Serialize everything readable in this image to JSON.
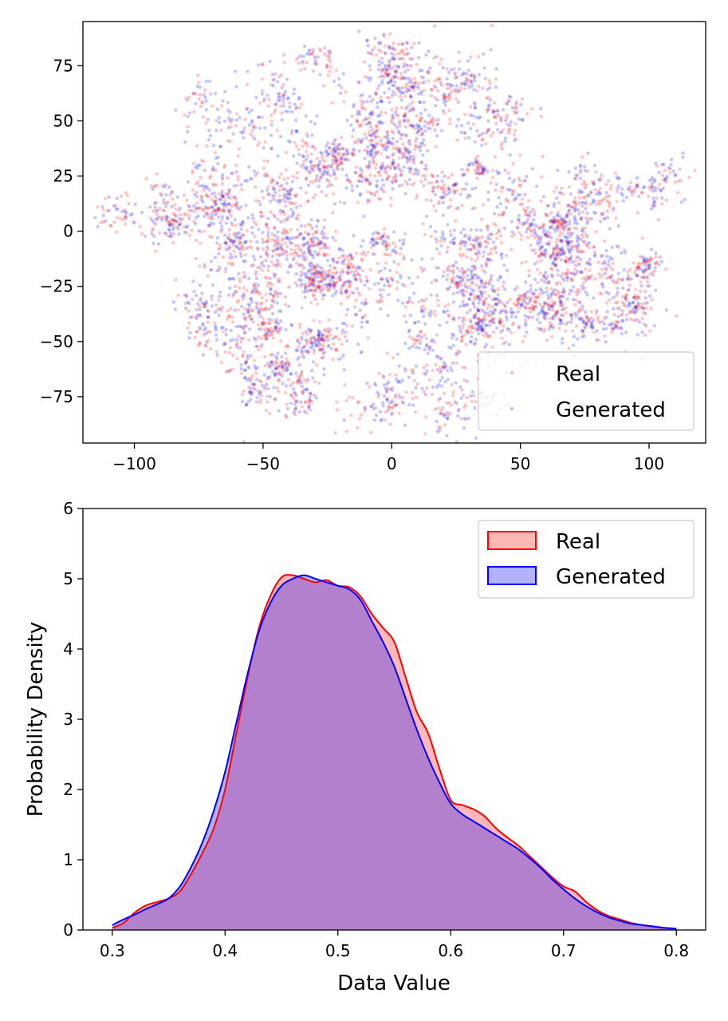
{
  "chart_data": [
    {
      "type": "scatter",
      "title": "",
      "xlabel": "",
      "ylabel": "",
      "xlim": [
        -120,
        122
      ],
      "ylim": [
        -96,
        95
      ],
      "xticks": [
        -100,
        -50,
        0,
        50,
        100
      ],
      "xtick_labels": [
        "−100",
        "−50",
        "0",
        "50",
        "100"
      ],
      "yticks": [
        -75,
        -50,
        -25,
        0,
        25,
        50,
        75
      ],
      "ytick_labels": [
        "−75",
        "−50",
        "−25",
        "0",
        "25",
        "50",
        "75"
      ],
      "legend_position": "lower-right",
      "series": [
        {
          "name": "Real",
          "color": "#ff0000",
          "alpha": 0.2,
          "point_count": 2600
        },
        {
          "name": "Generated",
          "color": "#0000ff",
          "alpha": 0.2,
          "point_count": 2600
        }
      ],
      "cloud": {
        "description": "t-SNE embedding, roughly elliptical cloud",
        "x_range": [
          -108,
          110
        ],
        "y_range": [
          -88,
          85
        ]
      }
    },
    {
      "type": "area",
      "title": "",
      "xlabel": "Data Value",
      "ylabel": "Probability Density",
      "xlim": [
        0.274,
        0.826
      ],
      "ylim": [
        0,
        6
      ],
      "xticks": [
        0.3,
        0.4,
        0.5,
        0.6,
        0.7,
        0.8
      ],
      "xtick_labels": [
        "0.3",
        "0.4",
        "0.5",
        "0.6",
        "0.7",
        "0.8"
      ],
      "yticks": [
        0,
        1,
        2,
        3,
        4,
        5,
        6
      ],
      "ytick_labels": [
        "0",
        "1",
        "2",
        "3",
        "4",
        "5",
        "6"
      ],
      "legend_position": "top-right",
      "series": [
        {
          "name": "Real",
          "line_color": "#ff0000",
          "fill_color": "#ff0000",
          "x": [
            0.3,
            0.31,
            0.32,
            0.33,
            0.34,
            0.35,
            0.36,
            0.37,
            0.38,
            0.39,
            0.4,
            0.41,
            0.42,
            0.43,
            0.44,
            0.45,
            0.46,
            0.47,
            0.48,
            0.49,
            0.5,
            0.51,
            0.52,
            0.53,
            0.54,
            0.55,
            0.56,
            0.57,
            0.58,
            0.59,
            0.6,
            0.61,
            0.62,
            0.63,
            0.64,
            0.65,
            0.66,
            0.67,
            0.68,
            0.69,
            0.7,
            0.71,
            0.72,
            0.73,
            0.74,
            0.75,
            0.76,
            0.77,
            0.78,
            0.79,
            0.8
          ],
          "y": [
            0.03,
            0.1,
            0.25,
            0.35,
            0.4,
            0.45,
            0.55,
            0.8,
            1.1,
            1.45,
            2.0,
            2.8,
            3.6,
            4.3,
            4.75,
            5.02,
            5.05,
            5.0,
            4.95,
            4.98,
            4.9,
            4.88,
            4.75,
            4.5,
            4.3,
            4.1,
            3.6,
            3.1,
            2.8,
            2.3,
            1.85,
            1.78,
            1.72,
            1.62,
            1.45,
            1.32,
            1.2,
            1.05,
            0.9,
            0.75,
            0.62,
            0.55,
            0.4,
            0.28,
            0.2,
            0.15,
            0.1,
            0.07,
            0.05,
            0.03,
            0.02
          ]
        },
        {
          "name": "Generated",
          "line_color": "#0000ff",
          "fill_color": "#0000ff",
          "x": [
            0.3,
            0.31,
            0.32,
            0.33,
            0.34,
            0.35,
            0.36,
            0.37,
            0.38,
            0.39,
            0.4,
            0.41,
            0.42,
            0.43,
            0.44,
            0.45,
            0.46,
            0.47,
            0.48,
            0.49,
            0.5,
            0.51,
            0.52,
            0.53,
            0.54,
            0.55,
            0.56,
            0.57,
            0.58,
            0.59,
            0.6,
            0.61,
            0.62,
            0.63,
            0.64,
            0.65,
            0.66,
            0.67,
            0.68,
            0.69,
            0.7,
            0.71,
            0.72,
            0.73,
            0.74,
            0.75,
            0.76,
            0.77,
            0.78,
            0.79,
            0.8
          ],
          "y": [
            0.07,
            0.15,
            0.22,
            0.3,
            0.37,
            0.45,
            0.62,
            0.9,
            1.25,
            1.7,
            2.25,
            2.95,
            3.65,
            4.25,
            4.65,
            4.9,
            5.0,
            5.05,
            5.0,
            4.95,
            4.9,
            4.85,
            4.7,
            4.4,
            4.1,
            3.75,
            3.3,
            2.85,
            2.45,
            2.1,
            1.8,
            1.65,
            1.55,
            1.45,
            1.35,
            1.25,
            1.15,
            1.02,
            0.88,
            0.72,
            0.58,
            0.45,
            0.34,
            0.25,
            0.18,
            0.13,
            0.09,
            0.07,
            0.05,
            0.03,
            0.02
          ]
        }
      ]
    }
  ]
}
